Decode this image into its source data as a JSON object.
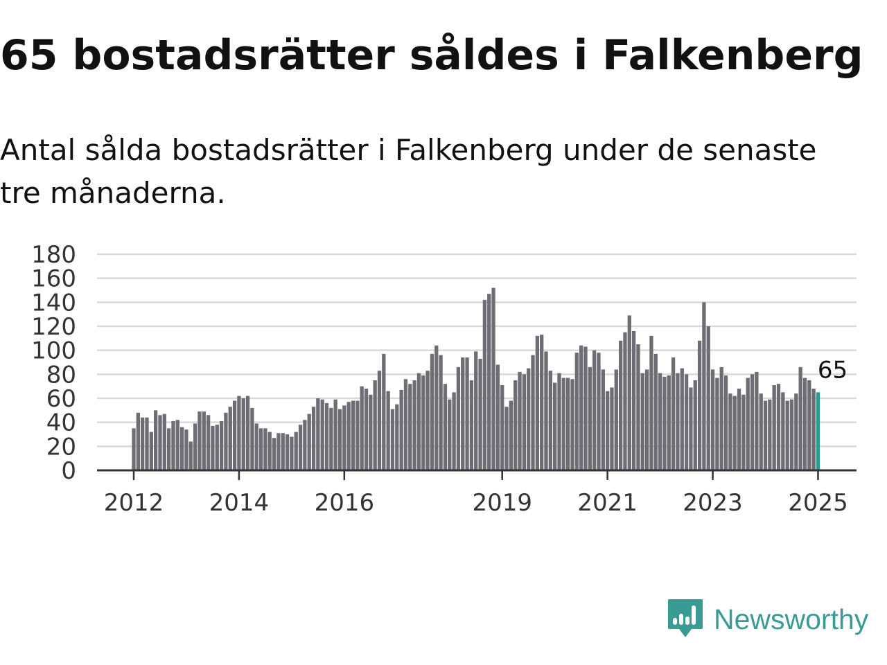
{
  "title": "65 bostadsrätter såldes i Falkenberg",
  "subtitle": "Antal sålda bostadsrätter i Falkenberg under de senaste tre månaderna.",
  "brand": {
    "name": "Newsworthy",
    "icon": "newsworthy-logo-icon",
    "color": "#3a9a94"
  },
  "chart_data": {
    "type": "bar",
    "x_start": "2012-01",
    "x_interval": "month",
    "ylim": [
      0,
      180
    ],
    "y_ticks": [
      0,
      20,
      40,
      60,
      80,
      100,
      120,
      140,
      160,
      180
    ],
    "x_tick_labels": [
      "2012",
      "2014",
      "2016",
      "2019",
      "2021",
      "2023",
      "2025"
    ],
    "grid": true,
    "series": [
      {
        "values": [
          35,
          48,
          44,
          44,
          32,
          50,
          46,
          47,
          35,
          41,
          42,
          36,
          34,
          24,
          39,
          49,
          49,
          46,
          37,
          38,
          41,
          48,
          53,
          58,
          62,
          60,
          62,
          52,
          39,
          35,
          35,
          32,
          27,
          31,
          31,
          30,
          28,
          32,
          38,
          42,
          47,
          53,
          60,
          59,
          56,
          52,
          59,
          51,
          54,
          57,
          58,
          58,
          70,
          68,
          63,
          75,
          83,
          97,
          66,
          51,
          55,
          67,
          76,
          72,
          75,
          81,
          79,
          83,
          97,
          104,
          96,
          72,
          59,
          65,
          86,
          94,
          94,
          75,
          99,
          93,
          142,
          147,
          152,
          88,
          71,
          53,
          58,
          75,
          82,
          80,
          85,
          96,
          112,
          113,
          99,
          83,
          73,
          81,
          77,
          77,
          76,
          98,
          104,
          103,
          86,
          100,
          98,
          84,
          66,
          69,
          84,
          108,
          115,
          129,
          116,
          105,
          81,
          84,
          112,
          97,
          81,
          78,
          79,
          94,
          81,
          85,
          80,
          69,
          75,
          108,
          140,
          120,
          84,
          77,
          86,
          79,
          64,
          62,
          68,
          63,
          77,
          80,
          82,
          64,
          58,
          59,
          71,
          72,
          65,
          58,
          59,
          64,
          86,
          77,
          75,
          68,
          65
        ]
      }
    ],
    "bar_color": "#6e6d73",
    "highlight_color": "#2a9a94",
    "annotation": {
      "label": "65",
      "value": 65
    }
  }
}
